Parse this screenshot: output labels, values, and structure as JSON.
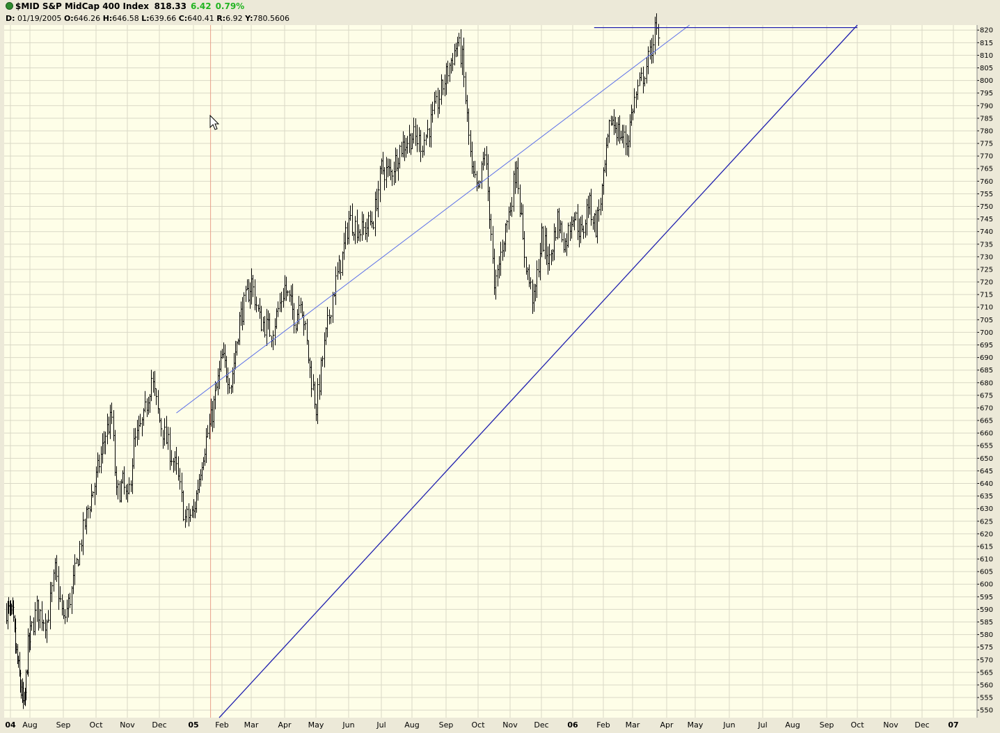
{
  "header": {
    "symbol_title": "$MID S&P MidCap 400 Index",
    "last": "818.33",
    "change": "6.42",
    "change_pct": "0.79%",
    "ohlc": {
      "date_label": "D:",
      "date": "01/19/2005",
      "open_label": "O:",
      "open": "646.26",
      "high_label": "H:",
      "high": "646.58",
      "low_label": "L:",
      "low": "639.66",
      "close_label": "C:",
      "close": "640.41",
      "range_label": "R:",
      "range": "6.92",
      "y_label": "Y:",
      "y": "780.5606"
    }
  },
  "colors": {
    "background": "#fefee8",
    "grid": "#d9d8c6",
    "bars": "#000000",
    "trendlines": "#1f1fae",
    "upper_trendline": "#5a6ee8",
    "cursor_line": "#e8a08a",
    "up_change": "#22b422"
  },
  "chart_data": {
    "type": "ohlc-bar",
    "title": "$MID S&P MidCap 400 Index",
    "xlabel": "",
    "ylabel": "",
    "ylim": [
      547,
      822
    ],
    "grid": true,
    "y_ticks": [
      550,
      555,
      560,
      565,
      570,
      575,
      580,
      585,
      590,
      595,
      600,
      605,
      610,
      615,
      620,
      625,
      630,
      635,
      640,
      645,
      650,
      655,
      660,
      665,
      670,
      675,
      680,
      685,
      690,
      695,
      700,
      705,
      710,
      715,
      720,
      725,
      730,
      735,
      740,
      745,
      750,
      755,
      760,
      765,
      770,
      775,
      780,
      785,
      790,
      795,
      800,
      805,
      810,
      815,
      820
    ],
    "x_labels": [
      {
        "label": "04",
        "bold": true
      },
      {
        "label": "Aug"
      },
      {
        "label": "Sep"
      },
      {
        "label": "Oct"
      },
      {
        "label": "Nov"
      },
      {
        "label": "Dec"
      },
      {
        "label": "05",
        "bold": true
      },
      {
        "label": "Feb"
      },
      {
        "label": "Mar"
      },
      {
        "label": "Apr"
      },
      {
        "label": "May"
      },
      {
        "label": "Jun"
      },
      {
        "label": "Jul"
      },
      {
        "label": "Aug"
      },
      {
        "label": "Sep"
      },
      {
        "label": "Oct"
      },
      {
        "label": "Nov"
      },
      {
        "label": "Dec"
      },
      {
        "label": "06",
        "bold": true
      },
      {
        "label": "Feb"
      },
      {
        "label": "Mar"
      },
      {
        "label": "Apr"
      },
      {
        "label": "May"
      },
      {
        "label": "Jun"
      },
      {
        "label": "Jul"
      },
      {
        "label": "Aug"
      },
      {
        "label": "Sep"
      },
      {
        "label": "Oct"
      },
      {
        "label": "Nov"
      },
      {
        "label": "Dec"
      },
      {
        "label": "07",
        "bold": true
      }
    ],
    "series": [
      {
        "values": [
          {
            "m": -0.2,
            "c": 590
          },
          {
            "m": 0.1,
            "c": 587
          },
          {
            "m": 0.3,
            "c": 572
          },
          {
            "m": 0.5,
            "c": 560
          },
          {
            "m": 0.7,
            "c": 550
          },
          {
            "m": 0.9,
            "c": 575
          },
          {
            "m": 1.2,
            "c": 590
          },
          {
            "m": 1.5,
            "c": 585
          },
          {
            "m": 1.75,
            "c": 605
          },
          {
            "m": 2.0,
            "c": 585
          },
          {
            "m": 2.25,
            "c": 597
          },
          {
            "m": 2.5,
            "c": 615
          },
          {
            "m": 2.75,
            "c": 630
          },
          {
            "m": 3.0,
            "c": 642
          },
          {
            "m": 3.3,
            "c": 660
          },
          {
            "m": 3.5,
            "c": 666
          },
          {
            "m": 3.65,
            "c": 635
          },
          {
            "m": 3.85,
            "c": 640
          },
          {
            "m": 4.0,
            "c": 632
          },
          {
            "m": 4.2,
            "c": 655
          },
          {
            "m": 4.5,
            "c": 665
          },
          {
            "m": 4.75,
            "c": 682
          },
          {
            "m": 5.0,
            "c": 665
          },
          {
            "m": 5.25,
            "c": 655
          },
          {
            "m": 5.5,
            "c": 645
          },
          {
            "m": 5.75,
            "c": 626
          },
          {
            "m": 6.0,
            "c": 628
          },
          {
            "m": 6.3,
            "c": 650
          },
          {
            "m": 6.6,
            "c": 665
          },
          {
            "m": 7.0,
            "c": 690
          },
          {
            "m": 7.3,
            "c": 680
          },
          {
            "m": 7.6,
            "c": 705
          },
          {
            "m": 8.0,
            "c": 720
          },
          {
            "m": 8.25,
            "c": 705
          },
          {
            "m": 8.6,
            "c": 700
          },
          {
            "m": 9.0,
            "c": 718
          },
          {
            "m": 9.35,
            "c": 705
          },
          {
            "m": 9.5,
            "c": 715
          },
          {
            "m": 9.8,
            "c": 685
          },
          {
            "m": 10.0,
            "c": 670
          },
          {
            "m": 10.2,
            "c": 690
          },
          {
            "m": 10.5,
            "c": 715
          },
          {
            "m": 10.8,
            "c": 730
          },
          {
            "m": 11.0,
            "c": 745
          },
          {
            "m": 11.4,
            "c": 740
          },
          {
            "m": 11.75,
            "c": 745
          },
          {
            "m": 12.0,
            "c": 765
          },
          {
            "m": 12.3,
            "c": 763
          },
          {
            "m": 12.6,
            "c": 773
          },
          {
            "m": 13.0,
            "c": 778
          },
          {
            "m": 13.3,
            "c": 775
          },
          {
            "m": 13.6,
            "c": 785
          },
          {
            "m": 13.9,
            "c": 798
          },
          {
            "m": 14.15,
            "c": 808
          },
          {
            "m": 14.35,
            "c": 815
          },
          {
            "m": 14.5,
            "c": 808
          },
          {
            "m": 14.65,
            "c": 785
          },
          {
            "m": 14.8,
            "c": 763
          },
          {
            "m": 15.0,
            "c": 755
          },
          {
            "m": 15.2,
            "c": 772
          },
          {
            "m": 15.4,
            "c": 740
          },
          {
            "m": 15.5,
            "c": 715
          },
          {
            "m": 15.75,
            "c": 735
          },
          {
            "m": 16.0,
            "c": 750
          },
          {
            "m": 16.2,
            "c": 768
          },
          {
            "m": 16.4,
            "c": 735
          },
          {
            "m": 16.6,
            "c": 720
          },
          {
            "m": 16.75,
            "c": 712
          },
          {
            "m": 17.0,
            "c": 738
          },
          {
            "m": 17.25,
            "c": 728
          },
          {
            "m": 17.5,
            "c": 745
          },
          {
            "m": 17.75,
            "c": 735
          },
          {
            "m": 18.0,
            "c": 748
          },
          {
            "m": 18.3,
            "c": 738
          },
          {
            "m": 18.5,
            "c": 752
          },
          {
            "m": 18.75,
            "c": 742
          },
          {
            "m": 19.0,
            "c": 760
          },
          {
            "m": 19.25,
            "c": 785
          },
          {
            "m": 19.5,
            "c": 780
          },
          {
            "m": 19.8,
            "c": 775
          },
          {
            "m": 20.0,
            "c": 790
          },
          {
            "m": 20.25,
            "c": 800
          },
          {
            "m": 20.5,
            "c": 810
          },
          {
            "m": 20.65,
            "c": 820
          },
          {
            "m": 20.75,
            "c": 815
          }
        ]
      }
    ],
    "trendlines": [
      {
        "name": "lower channel",
        "from": {
          "m": 3.45,
          "y": 500
        },
        "to": {
          "m": 27.0,
          "y": 822
        }
      },
      {
        "name": "upper channel",
        "from": {
          "m": 5.5,
          "y": 668
        },
        "to": {
          "m": 21.8,
          "y": 822
        }
      },
      {
        "name": "top horizontal",
        "from": {
          "m": 18.7,
          "y": 821
        },
        "to": {
          "m": 27.0,
          "y": 821
        }
      }
    ],
    "cursor": {
      "x": "01/19/2005"
    }
  }
}
